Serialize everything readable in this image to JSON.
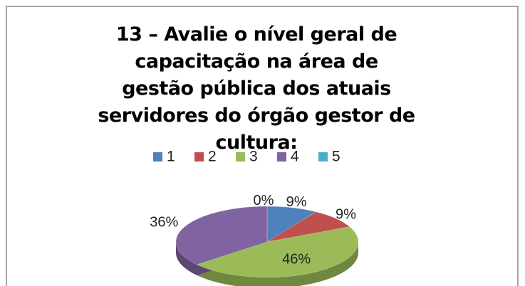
{
  "chart_data": {
    "type": "pie",
    "title": "13 – Avalie o nível geral de capacitação na área de gestão pública dos atuais servidores do órgão gestor de cultura:",
    "categories": [
      "1",
      "2",
      "3",
      "4",
      "5"
    ],
    "values": [
      9,
      9,
      46,
      36,
      0
    ],
    "value_labels": [
      "9%",
      "9%",
      "46%",
      "36%",
      "0%"
    ],
    "colors": [
      "#4f81bd",
      "#c0504d",
      "#9bbb59",
      "#8064a2",
      "#4bacc6"
    ],
    "legend": "top"
  }
}
